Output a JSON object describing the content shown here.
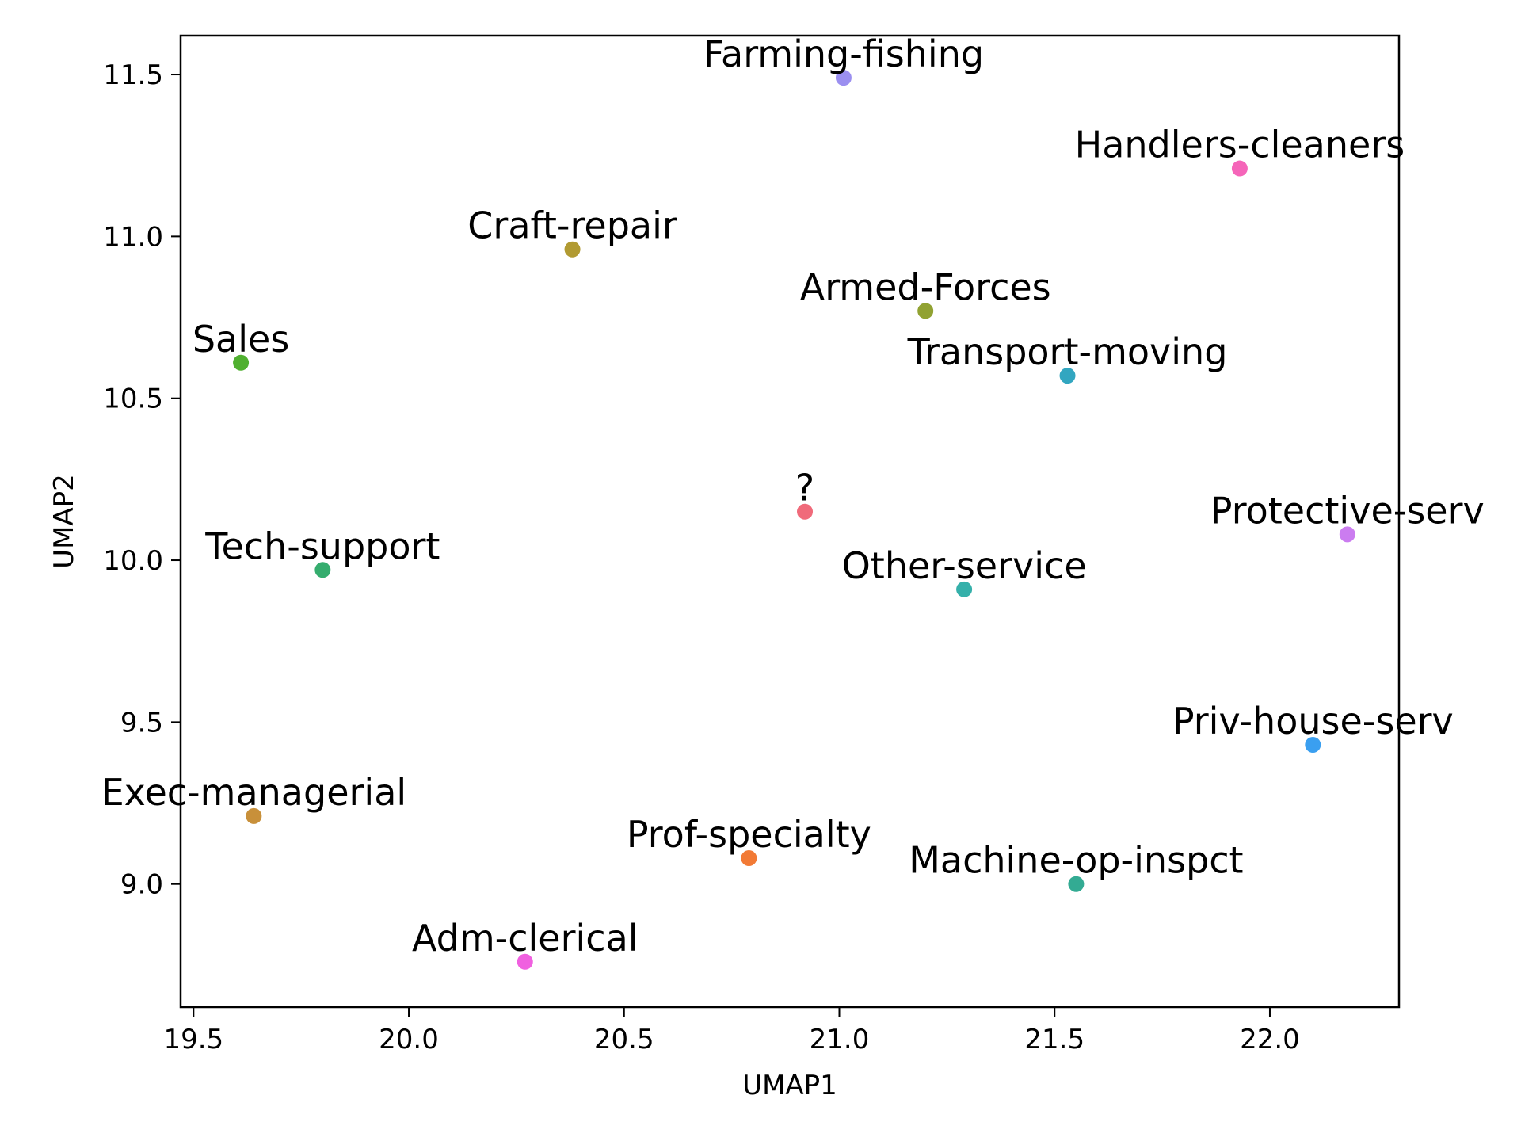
{
  "chart_data": {
    "type": "scatter",
    "xlabel": "UMAP1",
    "ylabel": "UMAP2",
    "xlim": [
      19.47,
      22.3
    ],
    "ylim": [
      8.62,
      11.62
    ],
    "xticks": [
      19.5,
      20.0,
      20.5,
      21.0,
      21.5,
      22.0
    ],
    "yticks": [
      9.0,
      9.5,
      10.0,
      10.5,
      11.0,
      11.5
    ],
    "xtick_labels": [
      "19.5",
      "20.0",
      "20.5",
      "21.0",
      "21.5",
      "22.0"
    ],
    "ytick_labels": [
      "9.0",
      "9.5",
      "10.0",
      "10.5",
      "11.0",
      "11.5"
    ],
    "grid": false,
    "points": [
      {
        "label": "Farming-fishing",
        "x": 21.01,
        "y": 11.49,
        "color": "#9b8ff0"
      },
      {
        "label": "Handlers-cleaners",
        "x": 21.93,
        "y": 11.21,
        "color": "#f565b9"
      },
      {
        "label": "Craft-repair",
        "x": 20.38,
        "y": 10.96,
        "color": "#b19a32"
      },
      {
        "label": "Armed-Forces",
        "x": 21.2,
        "y": 10.77,
        "color": "#91a232"
      },
      {
        "label": "Sales",
        "x": 19.61,
        "y": 10.61,
        "color": "#50b030"
      },
      {
        "label": "Transport-moving",
        "x": 21.53,
        "y": 10.57,
        "color": "#32a6c0"
      },
      {
        "label": "?",
        "x": 20.92,
        "y": 10.15,
        "color": "#f06a7a"
      },
      {
        "label": "Protective-serv",
        "x": 22.18,
        "y": 10.08,
        "color": "#cb7cf0"
      },
      {
        "label": "Tech-support",
        "x": 19.8,
        "y": 9.97,
        "color": "#35ad6e"
      },
      {
        "label": "Other-service",
        "x": 21.29,
        "y": 9.91,
        "color": "#35b0aa"
      },
      {
        "label": "Priv-house-serv",
        "x": 22.1,
        "y": 9.43,
        "color": "#3a9ff0"
      },
      {
        "label": "Exec-managerial",
        "x": 19.64,
        "y": 9.21,
        "color": "#c8903a"
      },
      {
        "label": "Prof-specialty",
        "x": 20.79,
        "y": 9.08,
        "color": "#f27a35"
      },
      {
        "label": "Machine-op-inspct",
        "x": 21.55,
        "y": 9.0,
        "color": "#33ab93"
      },
      {
        "label": "Adm-clerical",
        "x": 20.27,
        "y": 8.76,
        "color": "#f060e0"
      }
    ]
  }
}
